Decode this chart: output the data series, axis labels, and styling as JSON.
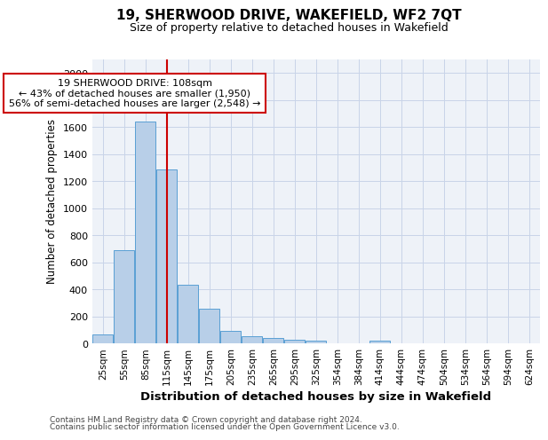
{
  "title": "19, SHERWOOD DRIVE, WAKEFIELD, WF2 7QT",
  "subtitle": "Size of property relative to detached houses in Wakefield",
  "xlabel": "Distribution of detached houses by size in Wakefield",
  "ylabel": "Number of detached properties",
  "property_size": 108,
  "property_label": "19 SHERWOOD DRIVE: 108sqm",
  "pct_smaller": 43,
  "n_smaller": 1950,
  "pct_larger_semi": 56,
  "n_larger_semi": 2548,
  "bar_color": "#b8cfe8",
  "bar_edge_color": "#5a9fd4",
  "vline_color": "#cc0000",
  "annotation_box_color": "#cc0000",
  "grid_color": "#c8d4e8",
  "background_color": "#eef2f8",
  "categories": [
    "25sqm",
    "55sqm",
    "85sqm",
    "115sqm",
    "145sqm",
    "175sqm",
    "205sqm",
    "235sqm",
    "265sqm",
    "295sqm",
    "325sqm",
    "354sqm",
    "384sqm",
    "414sqm",
    "444sqm",
    "474sqm",
    "504sqm",
    "534sqm",
    "564sqm",
    "594sqm",
    "624sqm"
  ],
  "values": [
    65,
    690,
    1640,
    1285,
    435,
    255,
    90,
    55,
    38,
    28,
    18,
    0,
    0,
    18,
    0,
    0,
    0,
    0,
    0,
    0,
    0
  ],
  "ylim": [
    0,
    2100
  ],
  "yticks": [
    0,
    200,
    400,
    600,
    800,
    1000,
    1200,
    1400,
    1600,
    1800,
    2000
  ],
  "footnote1": "Contains HM Land Registry data © Crown copyright and database right 2024.",
  "footnote2": "Contains public sector information licensed under the Open Government Licence v3.0."
}
